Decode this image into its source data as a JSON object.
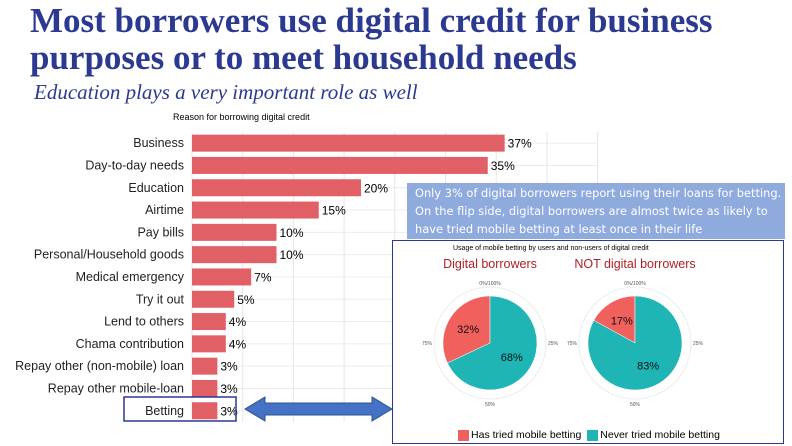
{
  "slide": {
    "title": "Most borrowers use digital credit for business purposes or to meet household needs",
    "subtitle": "Education plays a very important role as well",
    "callout": "Only 3% of digital borrowers report using their loans for betting. On the flip side, digital borrowers are almost twice as likely to have tried mobile betting at least once in their life"
  },
  "chart_data": [
    {
      "type": "bar",
      "orientation": "horizontal",
      "title": "Reason for borrowing digital credit",
      "categories": [
        "Business",
        "Day-to-day needs",
        "Education",
        "Airtime",
        "Pay bills",
        "Personal/Household goods",
        "Medical emergency",
        "Try it out",
        "Lend to others",
        "Chama contribution",
        "Repay other (non-mobile) loan",
        "Repay other mobile-loan",
        "Betting"
      ],
      "values": [
        37,
        35,
        20,
        15,
        10,
        10,
        7,
        5,
        4,
        4,
        3,
        3,
        3
      ],
      "value_labels": [
        "37%",
        "35%",
        "20%",
        "15%",
        "10%",
        "10%",
        "7%",
        "5%",
        "4%",
        "4%",
        "3%",
        "3%",
        "3%"
      ],
      "highlighted_category": "Betting",
      "bar_color": "#e06066",
      "grid": true
    },
    {
      "type": "pie",
      "title": "Usage of mobile betting by users and non-users of digital credit",
      "axis_labels": [
        "0%/100%",
        "25%",
        "50%",
        "75%"
      ],
      "legend": [
        "Has tried mobile betting",
        "Never tried mobile betting"
      ],
      "legend_position": "bottom",
      "colors": [
        "#f0605d",
        "#1fb5b5"
      ],
      "panels": [
        {
          "title": "Digital borrowers",
          "values": [
            32,
            68
          ],
          "labels": [
            "32%",
            "68%"
          ]
        },
        {
          "title": "NOT digital borrowers",
          "values": [
            17,
            83
          ],
          "labels": [
            "17%",
            "83%"
          ]
        }
      ]
    }
  ]
}
